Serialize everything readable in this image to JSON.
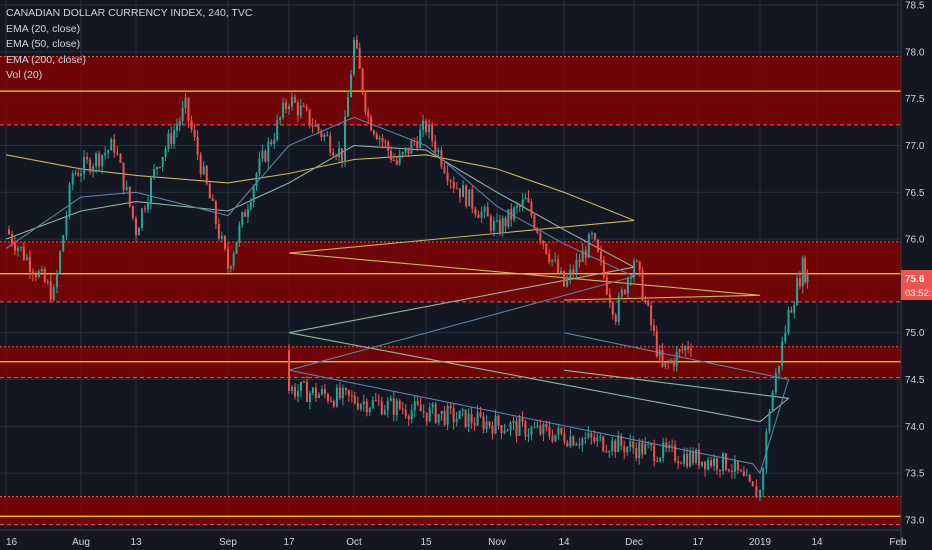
{
  "legend": {
    "title": "CANADIAN DOLLAR CURRENCY INDEX, 240, TVC",
    "ema20": "EMA (20, close)",
    "ema50": "EMA (50, close)",
    "ema200": "EMA (200, close)",
    "vol": "Vol (20)"
  },
  "price_badge": {
    "price": "75.6",
    "countdown": "03:52:5"
  },
  "colors": {
    "background": "#131722",
    "zone_fill": "#8b0000",
    "zone_border": "#ff4d4d",
    "level_line": "#ffd21a",
    "up_candle": "#26a69a",
    "down_candle": "#ef5350",
    "ema20": "#5b7fa8",
    "ema50": "#8fb5a0",
    "ema200": "#c9b458",
    "badge": "#ef5350"
  },
  "chart_data": {
    "type": "candlestick",
    "timeframe": "240",
    "symbol": "CANADIAN DOLLAR CURRENCY INDEX",
    "exchange": "TVC",
    "ylim": [
      72.9,
      78.55
    ],
    "y_ticks": [
      "73.0",
      "73.5",
      "74.0",
      "74.5",
      "75.0",
      "75.5",
      "76.0",
      "76.5",
      "77.0",
      "77.5",
      "78.0",
      "78.5"
    ],
    "x_ticks": [
      "16",
      "Aug",
      "13",
      "Sep",
      "17",
      "Oct",
      "15",
      "Nov",
      "14",
      "Dec",
      "17",
      "2019",
      "14",
      "Feb"
    ],
    "last_price": 75.6,
    "zones": [
      {
        "top": 77.95,
        "bottom": 77.22,
        "level": 77.58
      },
      {
        "top": 75.97,
        "bottom": 75.33,
        "level": 75.63
      },
      {
        "top": 74.85,
        "bottom": 74.52,
        "level": 74.69
      },
      {
        "top": 73.25,
        "bottom": 72.95,
        "level": 73.04
      }
    ],
    "price_path": [
      {
        "date": "16",
        "close": 76.1
      },
      {
        "date": "17 Jul",
        "close": 75.4
      },
      {
        "date": "21 Jul",
        "close": 76.7
      },
      {
        "date": "Aug",
        "close": 76.75
      },
      {
        "date": "8 Aug",
        "close": 77.0
      },
      {
        "date": "13",
        "close": 76.1
      },
      {
        "date": "17 Aug",
        "close": 76.8
      },
      {
        "date": "23 Aug",
        "close": 77.4
      },
      {
        "date": "Sep",
        "close": 75.7
      },
      {
        "date": "7 Sep",
        "close": 76.7
      },
      {
        "date": "17",
        "close": 77.5
      },
      {
        "date": "25 Sep",
        "close": 76.9
      },
      {
        "date": "Oct",
        "close": 78.1
      },
      {
        "date": "4 Oct",
        "close": 77.3
      },
      {
        "date": "10 Oct",
        "close": 76.8
      },
      {
        "date": "15",
        "close": 77.2
      },
      {
        "date": "22 Oct",
        "close": 76.6
      },
      {
        "date": "Nov",
        "close": 76.1
      },
      {
        "date": "7 Nov",
        "close": 76.4
      },
      {
        "date": "14",
        "close": 75.5
      },
      {
        "date": "21 Nov",
        "close": 76.0
      },
      {
        "date": "26 Nov",
        "close": 75.2
      },
      {
        "date": "Dec",
        "close": 75.8
      },
      {
        "date": "7 Dec",
        "close": 74.6
      },
      {
        "date": "13 Dec",
        "close": 74.9
      },
      {
        "date": "17",
        "close": 74.4
      },
      {
        "date": "21 Dec",
        "close": 73.6
      },
      {
        "date": "26 Dec",
        "close": 73.3
      },
      {
        "date": "2019",
        "close": 73.3
      },
      {
        "date": "3 Jan",
        "close": 74.2
      },
      {
        "date": "7 Jan",
        "close": 75.2
      },
      {
        "date": "10 Jan",
        "close": 75.7
      },
      {
        "date": "11 Jan",
        "close": 75.6
      }
    ],
    "ema20": [
      [
        "16",
        75.9
      ],
      [
        "Aug",
        76.45
      ],
      [
        "13",
        76.5
      ],
      [
        "Sep",
        76.25
      ],
      [
        "17",
        77.0
      ],
      [
        "Oct",
        77.3
      ],
      [
        "15",
        77.0
      ],
      [
        "Nov",
        76.35
      ],
      [
        "14",
        75.95
      ],
      [
        "Dec",
        75.6
      ],
      [
        "17",
        74.6
      ],
      [
        "26 Dec",
        73.6
      ],
      [
        "2019",
        73.5
      ],
      [
        "7 Jan",
        74.5
      ],
      [
        "14",
        75.0
      ]
    ],
    "ema50": [
      [
        "16",
        76.0
      ],
      [
        "Aug",
        76.3
      ],
      [
        "13",
        76.4
      ],
      [
        "Sep",
        76.3
      ],
      [
        "17",
        76.6
      ],
      [
        "Oct",
        77.0
      ],
      [
        "15",
        76.95
      ],
      [
        "Nov",
        76.5
      ],
      [
        "14",
        76.1
      ],
      [
        "Dec",
        75.7
      ],
      [
        "17",
        75.0
      ],
      [
        "2019",
        74.05
      ],
      [
        "7 Jan",
        74.3
      ],
      [
        "14",
        74.6
      ]
    ],
    "ema200": [
      [
        "16",
        76.9
      ],
      [
        "Aug",
        76.75
      ],
      [
        "13",
        76.68
      ],
      [
        "Sep",
        76.6
      ],
      [
        "17",
        76.7
      ],
      [
        "Oct",
        76.85
      ],
      [
        "15",
        76.9
      ],
      [
        "Nov",
        76.75
      ],
      [
        "14",
        76.5
      ],
      [
        "Dec",
        76.2
      ],
      [
        "17",
        75.85
      ],
      [
        "2019",
        75.4
      ],
      [
        "14",
        75.35
      ]
    ]
  }
}
